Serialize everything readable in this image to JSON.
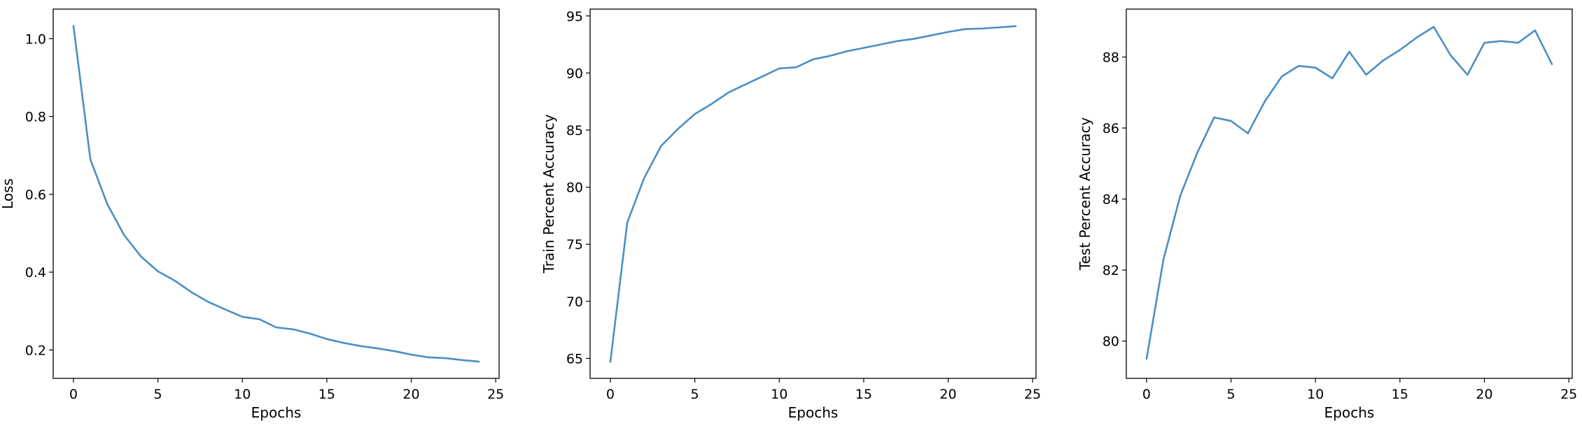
{
  "chart_data": [
    {
      "type": "line",
      "xlabel": "Epochs",
      "ylabel": "Loss",
      "xlim": [
        -1.2,
        25.2
      ],
      "ylim": [
        0.127,
        1.076
      ],
      "xticks": [
        0,
        5,
        10,
        15,
        20,
        25
      ],
      "xtick_labels": [
        "0",
        "5",
        "10",
        "15",
        "20",
        "25"
      ],
      "yticks": [
        0.2,
        0.4,
        0.6,
        0.8,
        1.0
      ],
      "ytick_labels": [
        "0.2",
        "0.4",
        "0.6",
        "0.8",
        "1.0"
      ],
      "grid": false,
      "color": "#4a8fc4",
      "x": [
        0,
        1,
        2,
        3,
        4,
        5,
        6,
        7,
        8,
        9,
        10,
        11,
        12,
        13,
        14,
        15,
        16,
        17,
        18,
        19,
        20,
        21,
        22,
        23,
        24
      ],
      "y": [
        1.033,
        0.69,
        0.575,
        0.495,
        0.44,
        0.402,
        0.378,
        0.348,
        0.323,
        0.304,
        0.285,
        0.279,
        0.258,
        0.253,
        0.242,
        0.228,
        0.218,
        0.21,
        0.204,
        0.197,
        0.188,
        0.181,
        0.179,
        0.174,
        0.17
      ]
    },
    {
      "type": "line",
      "xlabel": "Epochs",
      "ylabel": "Train Percent Accuracy",
      "xlim": [
        -1.2,
        25.2
      ],
      "ylim": [
        63.25,
        95.6
      ],
      "xticks": [
        0,
        5,
        10,
        15,
        20,
        25
      ],
      "xtick_labels": [
        "0",
        "5",
        "10",
        "15",
        "20",
        "25"
      ],
      "yticks": [
        65,
        70,
        75,
        80,
        85,
        90,
        95
      ],
      "ytick_labels": [
        "65",
        "70",
        "75",
        "80",
        "85",
        "90",
        "95"
      ],
      "grid": false,
      "color": "#4a8fc4",
      "x": [
        0,
        1,
        2,
        3,
        4,
        5,
        6,
        7,
        8,
        9,
        10,
        11,
        12,
        13,
        14,
        15,
        16,
        17,
        18,
        19,
        20,
        21,
        22,
        23,
        24
      ],
      "y": [
        64.7,
        76.9,
        80.8,
        83.6,
        85.1,
        86.4,
        87.3,
        88.3,
        89.0,
        89.7,
        90.4,
        90.5,
        91.2,
        91.5,
        91.9,
        92.2,
        92.5,
        92.8,
        93.0,
        93.3,
        93.6,
        93.85,
        93.9,
        94.0,
        94.1
      ]
    },
    {
      "type": "line",
      "xlabel": "Epochs",
      "ylabel": "Test Percent Accuracy",
      "xlim": [
        -1.2,
        25.2
      ],
      "ylim": [
        78.95,
        89.35
      ],
      "xticks": [
        0,
        5,
        10,
        15,
        20,
        25
      ],
      "xtick_labels": [
        "0",
        "5",
        "10",
        "15",
        "20",
        "25"
      ],
      "yticks": [
        80,
        82,
        84,
        86,
        88
      ],
      "ytick_labels": [
        "80",
        "82",
        "84",
        "86",
        "88"
      ],
      "grid": false,
      "color": "#4a8fc4",
      "x": [
        0,
        1,
        2,
        3,
        4,
        5,
        6,
        7,
        8,
        9,
        10,
        11,
        12,
        13,
        14,
        15,
        16,
        17,
        18,
        19,
        20,
        21,
        22,
        23,
        24
      ],
      "y": [
        79.5,
        82.3,
        84.1,
        85.3,
        86.3,
        86.2,
        85.85,
        86.75,
        87.45,
        87.75,
        87.7,
        87.4,
        88.15,
        87.5,
        87.9,
        88.2,
        88.55,
        88.85,
        88.05,
        87.5,
        88.4,
        88.45,
        88.4,
        88.75,
        87.8
      ]
    }
  ]
}
